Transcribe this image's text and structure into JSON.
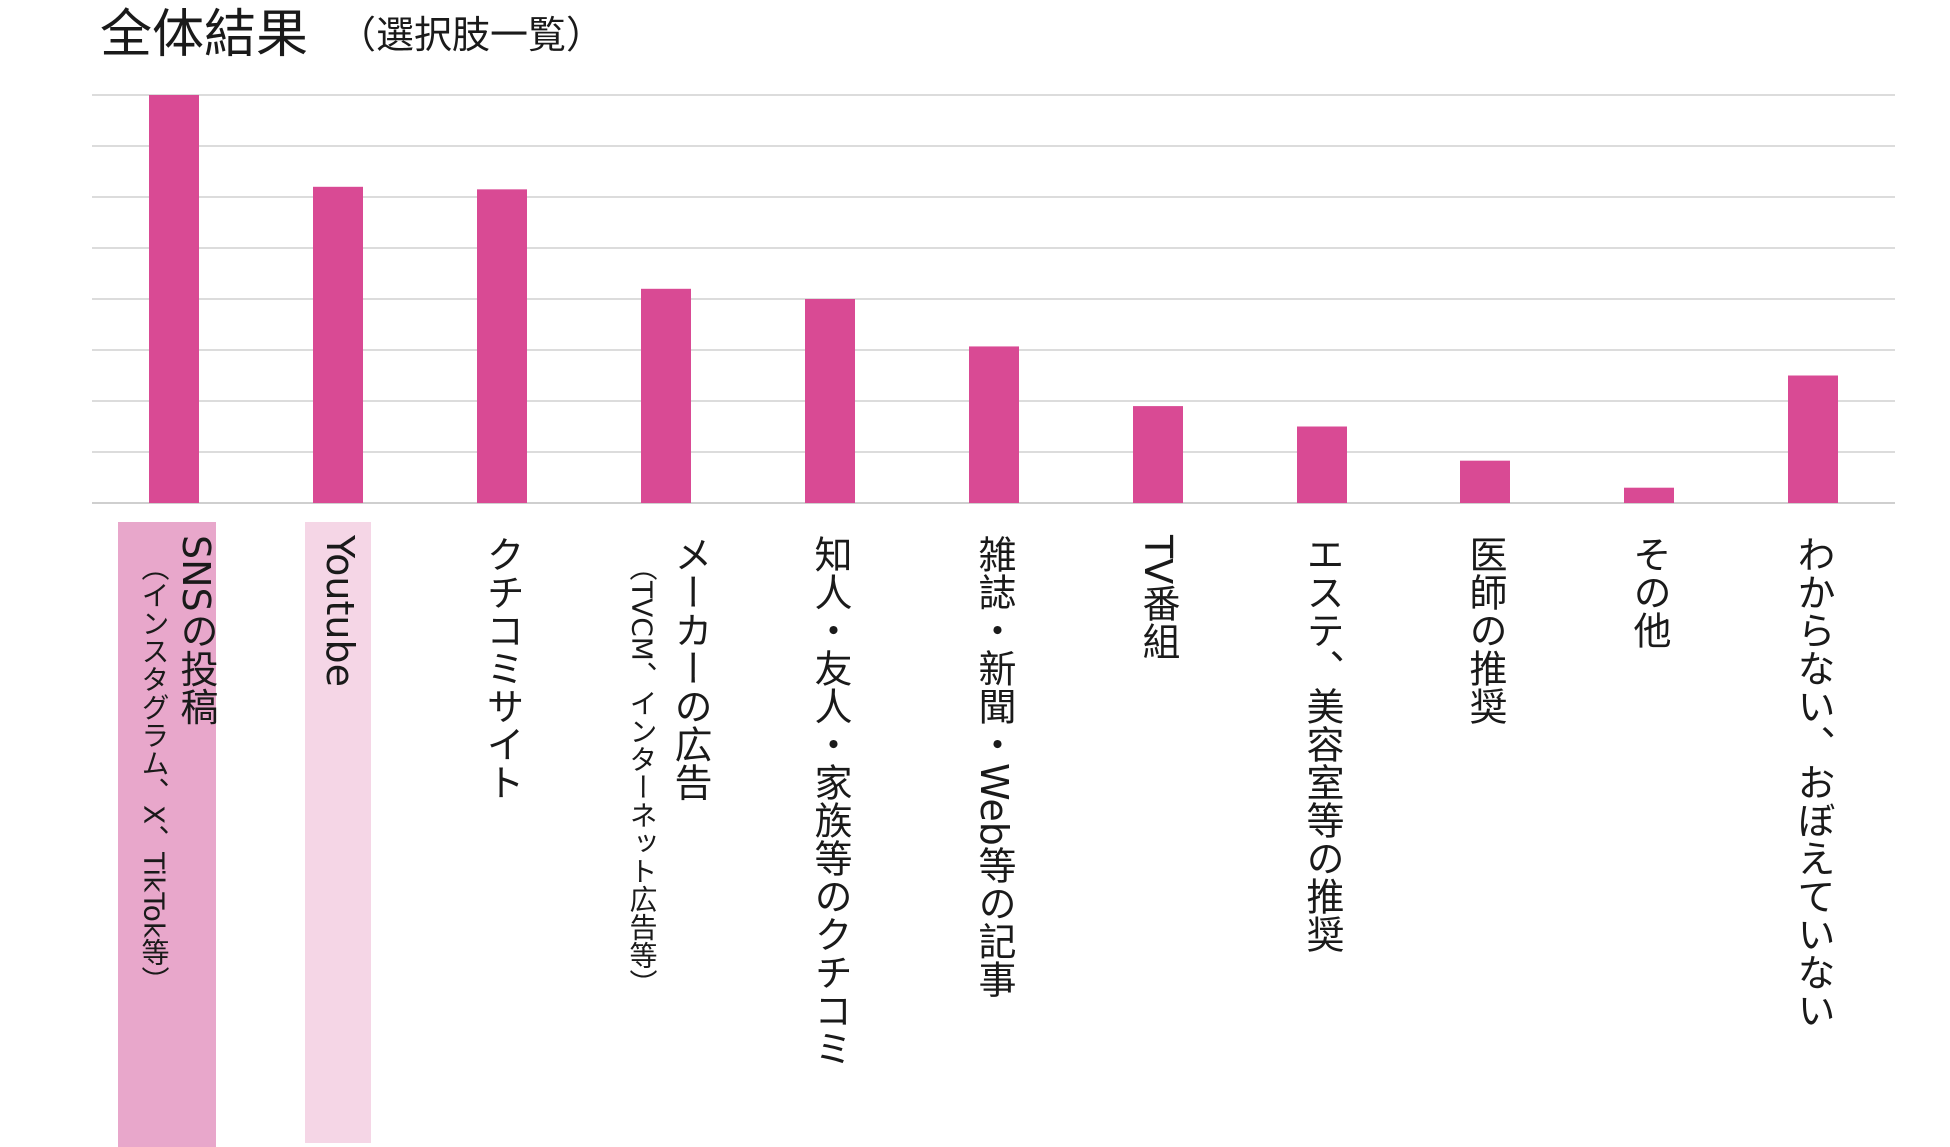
{
  "page": {
    "title": "全体結果",
    "subtitle": "（選択肢一覧）"
  },
  "chart_data": {
    "type": "bar",
    "title": "全体結果",
    "subtitle": "（選択肢一覧）",
    "xlabel": "",
    "ylabel": "",
    "ylim": [
      0,
      8
    ],
    "grid": true,
    "gridlines": 8,
    "y_tick_labels_shown": false,
    "bar_color": "#d94a94",
    "categories": [
      "SNSの投稿",
      "Youtube",
      "クチコミサイト",
      "メーカーの広告",
      "知人・友人・家族等のクチコミ",
      "雑誌・新聞・Web等の記事",
      "TV番組",
      "エステ、美容室等の推奨",
      "医師の推奨",
      "その他",
      "わからない、おぼえていない"
    ],
    "category_notes": [
      "（インスタグラム、X、TikTok等）",
      "",
      "",
      "（TVCM、インターネット広告等）",
      "",
      "",
      "",
      "",
      "",
      "",
      ""
    ],
    "values": [
      8.0,
      6.2,
      6.15,
      4.2,
      4.0,
      3.07,
      1.9,
      1.5,
      0.83,
      0.3,
      2.5
    ],
    "highlights": [
      {
        "category_index": 0,
        "color": "#e8a7cb"
      },
      {
        "category_index": 1,
        "color": "#f5d6e6"
      }
    ]
  }
}
